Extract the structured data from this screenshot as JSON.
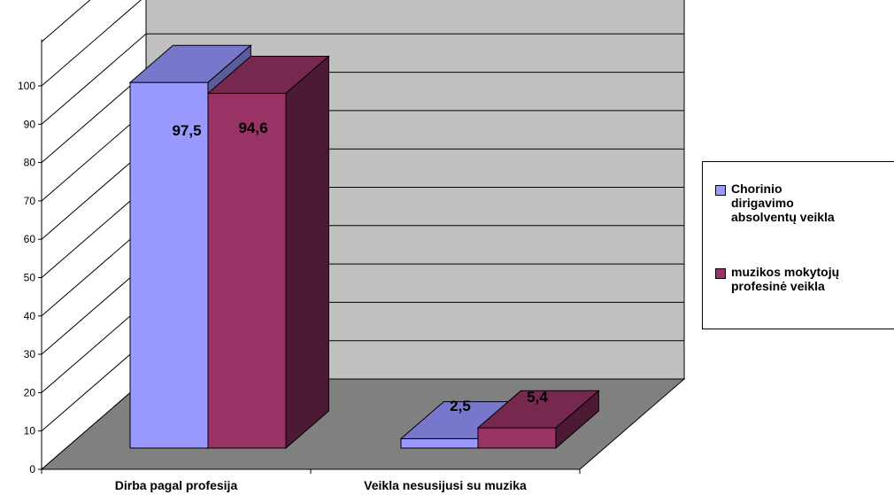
{
  "chart_data": {
    "type": "bar",
    "categories": [
      "Dirba pagal profesija",
      "Veikla nesusijusi su muzika"
    ],
    "series": [
      {
        "name": "Chorinio\ndirigavimo\nabsolventų veikla",
        "values": [
          97.5,
          2.5
        ],
        "value_labels": [
          "97,5",
          "2,5"
        ]
      },
      {
        "name": "muzikos mokytojų\nprofesinė veikla",
        "values": [
          94.6,
          5.4
        ],
        "value_labels": [
          "94,6",
          "5,4"
        ]
      }
    ],
    "ylim": [
      0,
      100
    ],
    "yticks": [
      0,
      10,
      20,
      30,
      40,
      50,
      60,
      70,
      80,
      90,
      100
    ],
    "legend_position": "right",
    "grid": true,
    "three_d": true
  },
  "colors": {
    "series_front": [
      "#9999ff",
      "#993366"
    ],
    "series_top": [
      "#7777cc",
      "#77284f"
    ],
    "series_side": [
      "#5c5c99",
      "#4c1a33"
    ],
    "back_wall": "#c0c0c0",
    "floor": "#808080",
    "grid": "#000000"
  }
}
